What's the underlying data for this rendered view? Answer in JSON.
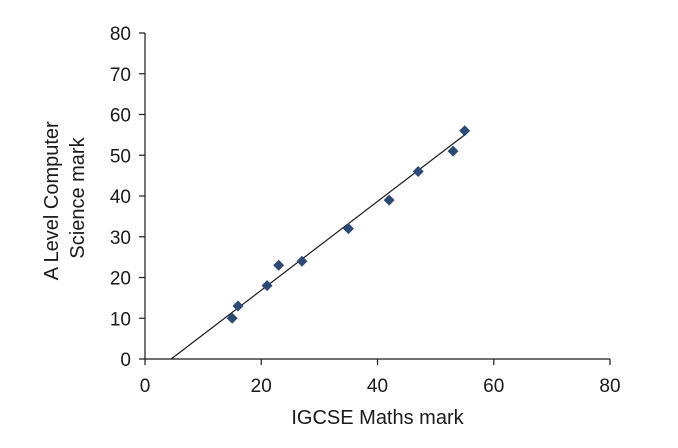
{
  "chart_data": {
    "type": "scatter",
    "title": "",
    "xlabel": "IGCSE Maths mark",
    "ylabel_lines": [
      "A Level Computer",
      "Science mark"
    ],
    "xlim": [
      0,
      80
    ],
    "ylim": [
      0,
      80
    ],
    "x_ticks": [
      0,
      20,
      40,
      60,
      80
    ],
    "y_ticks": [
      0,
      10,
      20,
      30,
      40,
      50,
      60,
      70,
      80
    ],
    "grid": false,
    "legend": "none",
    "marker_shape": "diamond",
    "marker_color": "#2e4a74",
    "series": [
      {
        "x": [
          15,
          16,
          21,
          23,
          27,
          35,
          42,
          47,
          53,
          55
        ],
        "y": [
          10,
          13,
          18,
          23,
          24,
          32,
          39,
          46,
          51,
          56
        ]
      }
    ],
    "trendline": {
      "type": "linear",
      "from": [
        4.5,
        0
      ],
      "to": [
        55,
        55
      ]
    }
  }
}
